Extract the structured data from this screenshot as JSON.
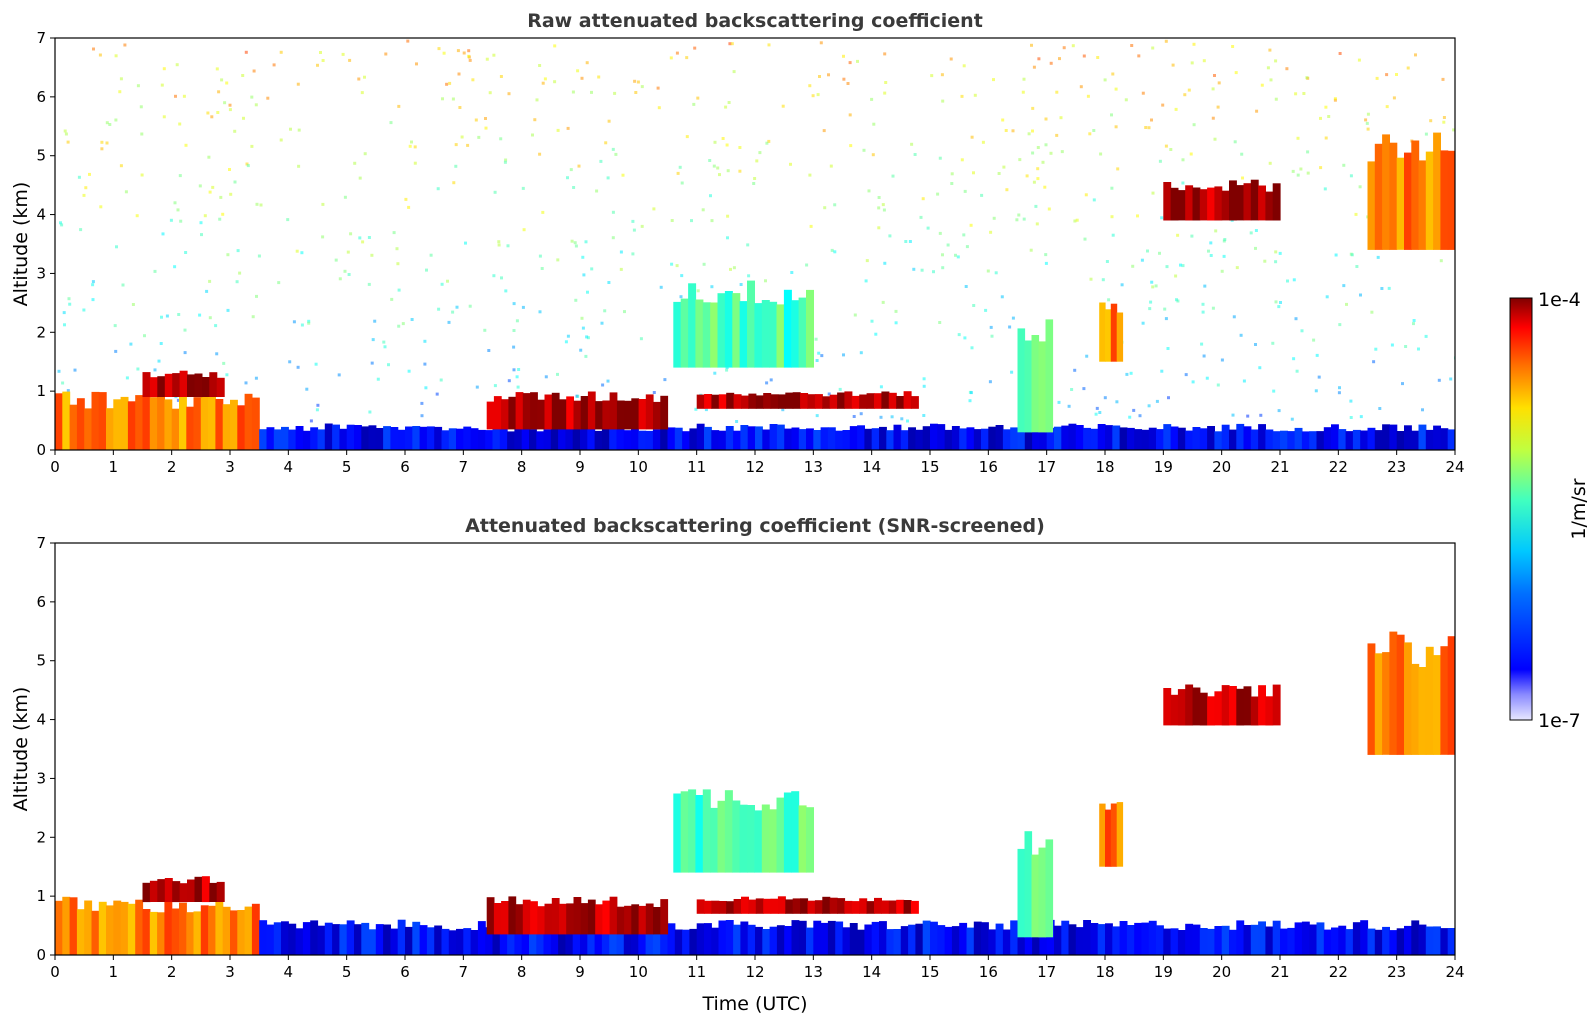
{
  "chart_data": [
    {
      "type": "heatmap",
      "title": "Raw attenuated backscattering coefficient",
      "xlabel": "",
      "ylabel": "Altitude (km)",
      "xlim": [
        0,
        24
      ],
      "ylim": [
        0,
        7
      ],
      "xticks": [
        "0",
        "1",
        "2",
        "3",
        "4",
        "5",
        "6",
        "7",
        "8",
        "9",
        "10",
        "11",
        "12",
        "13",
        "14",
        "15",
        "16",
        "17",
        "18",
        "19",
        "20",
        "21",
        "22",
        "23",
        "24"
      ],
      "yticks": [
        "0",
        "1",
        "2",
        "3",
        "4",
        "5",
        "6",
        "7"
      ],
      "variant": "raw",
      "features": [
        {
          "kind": "boundary-layer",
          "t": [
            0,
            3.5
          ],
          "z": [
            0,
            1.0
          ],
          "level": "high"
        },
        {
          "kind": "surface-layer",
          "t": [
            3.5,
            24
          ],
          "z": [
            0,
            0.45
          ],
          "level": "low"
        },
        {
          "kind": "cloud",
          "t": [
            1.5,
            2.9
          ],
          "z": [
            0.9,
            1.35
          ],
          "level": "max"
        },
        {
          "kind": "cloud",
          "t": [
            7.4,
            10.5
          ],
          "z": [
            0.35,
            1.0
          ],
          "level": "max"
        },
        {
          "kind": "aerosol",
          "t": [
            10.6,
            13.0
          ],
          "z": [
            1.4,
            2.9
          ],
          "level": "medium"
        },
        {
          "kind": "cloud",
          "t": [
            11.0,
            14.8
          ],
          "z": [
            0.7,
            1.0
          ],
          "level": "max"
        },
        {
          "kind": "convective",
          "t": [
            16.5,
            17.1
          ],
          "z": [
            0.3,
            2.3
          ],
          "level": "medium"
        },
        {
          "kind": "convective",
          "t": [
            17.9,
            18.3
          ],
          "z": [
            1.5,
            2.6
          ],
          "level": "high"
        },
        {
          "kind": "cirrus",
          "t": [
            19.0,
            21.0
          ],
          "z": [
            3.9,
            4.6
          ],
          "level": "max"
        },
        {
          "kind": "cirrus",
          "t": [
            22.5,
            24.0
          ],
          "z": [
            3.4,
            5.5
          ],
          "level": "high"
        }
      ]
    },
    {
      "type": "heatmap",
      "title": "Attenuated backscattering coefficient (SNR-screened)",
      "xlabel": "Time (UTC)",
      "ylabel": "Altitude (km)",
      "xlim": [
        0,
        24
      ],
      "ylim": [
        0,
        7
      ],
      "xticks": [
        "0",
        "1",
        "2",
        "3",
        "4",
        "5",
        "6",
        "7",
        "8",
        "9",
        "10",
        "11",
        "12",
        "13",
        "14",
        "15",
        "16",
        "17",
        "18",
        "19",
        "20",
        "21",
        "22",
        "23",
        "24"
      ],
      "yticks": [
        "0",
        "1",
        "2",
        "3",
        "4",
        "5",
        "6",
        "7"
      ],
      "variant": "screened",
      "features": [
        {
          "kind": "boundary-layer",
          "t": [
            0,
            3.5
          ],
          "z": [
            0,
            1.0
          ],
          "level": "high"
        },
        {
          "kind": "surface-layer",
          "t": [
            3.5,
            24
          ],
          "z": [
            0,
            0.6
          ],
          "level": "low"
        },
        {
          "kind": "cloud",
          "t": [
            1.5,
            2.9
          ],
          "z": [
            0.9,
            1.35
          ],
          "level": "max"
        },
        {
          "kind": "cloud",
          "t": [
            7.4,
            10.5
          ],
          "z": [
            0.35,
            1.0
          ],
          "level": "max"
        },
        {
          "kind": "aerosol",
          "t": [
            10.6,
            13.0
          ],
          "z": [
            1.4,
            2.9
          ],
          "level": "medium"
        },
        {
          "kind": "cloud",
          "t": [
            11.0,
            14.8
          ],
          "z": [
            0.7,
            1.0
          ],
          "level": "max"
        },
        {
          "kind": "convective",
          "t": [
            16.5,
            17.1
          ],
          "z": [
            0.3,
            2.3
          ],
          "level": "medium"
        },
        {
          "kind": "convective",
          "t": [
            17.9,
            18.3
          ],
          "z": [
            1.5,
            2.6
          ],
          "level": "high"
        },
        {
          "kind": "cirrus",
          "t": [
            19.0,
            21.0
          ],
          "z": [
            3.9,
            4.6
          ],
          "level": "max"
        },
        {
          "kind": "cirrus",
          "t": [
            22.5,
            24.0
          ],
          "z": [
            3.4,
            5.5
          ],
          "level": "high"
        }
      ]
    }
  ],
  "colorbar": {
    "label": "1/m/sr",
    "max_label": "1e-4",
    "min_label": "1e-7",
    "colormap": "jet",
    "scale": "log"
  },
  "colors": {
    "background": "#ffffff",
    "axis": "#000000",
    "title": "#3a3a3a"
  }
}
